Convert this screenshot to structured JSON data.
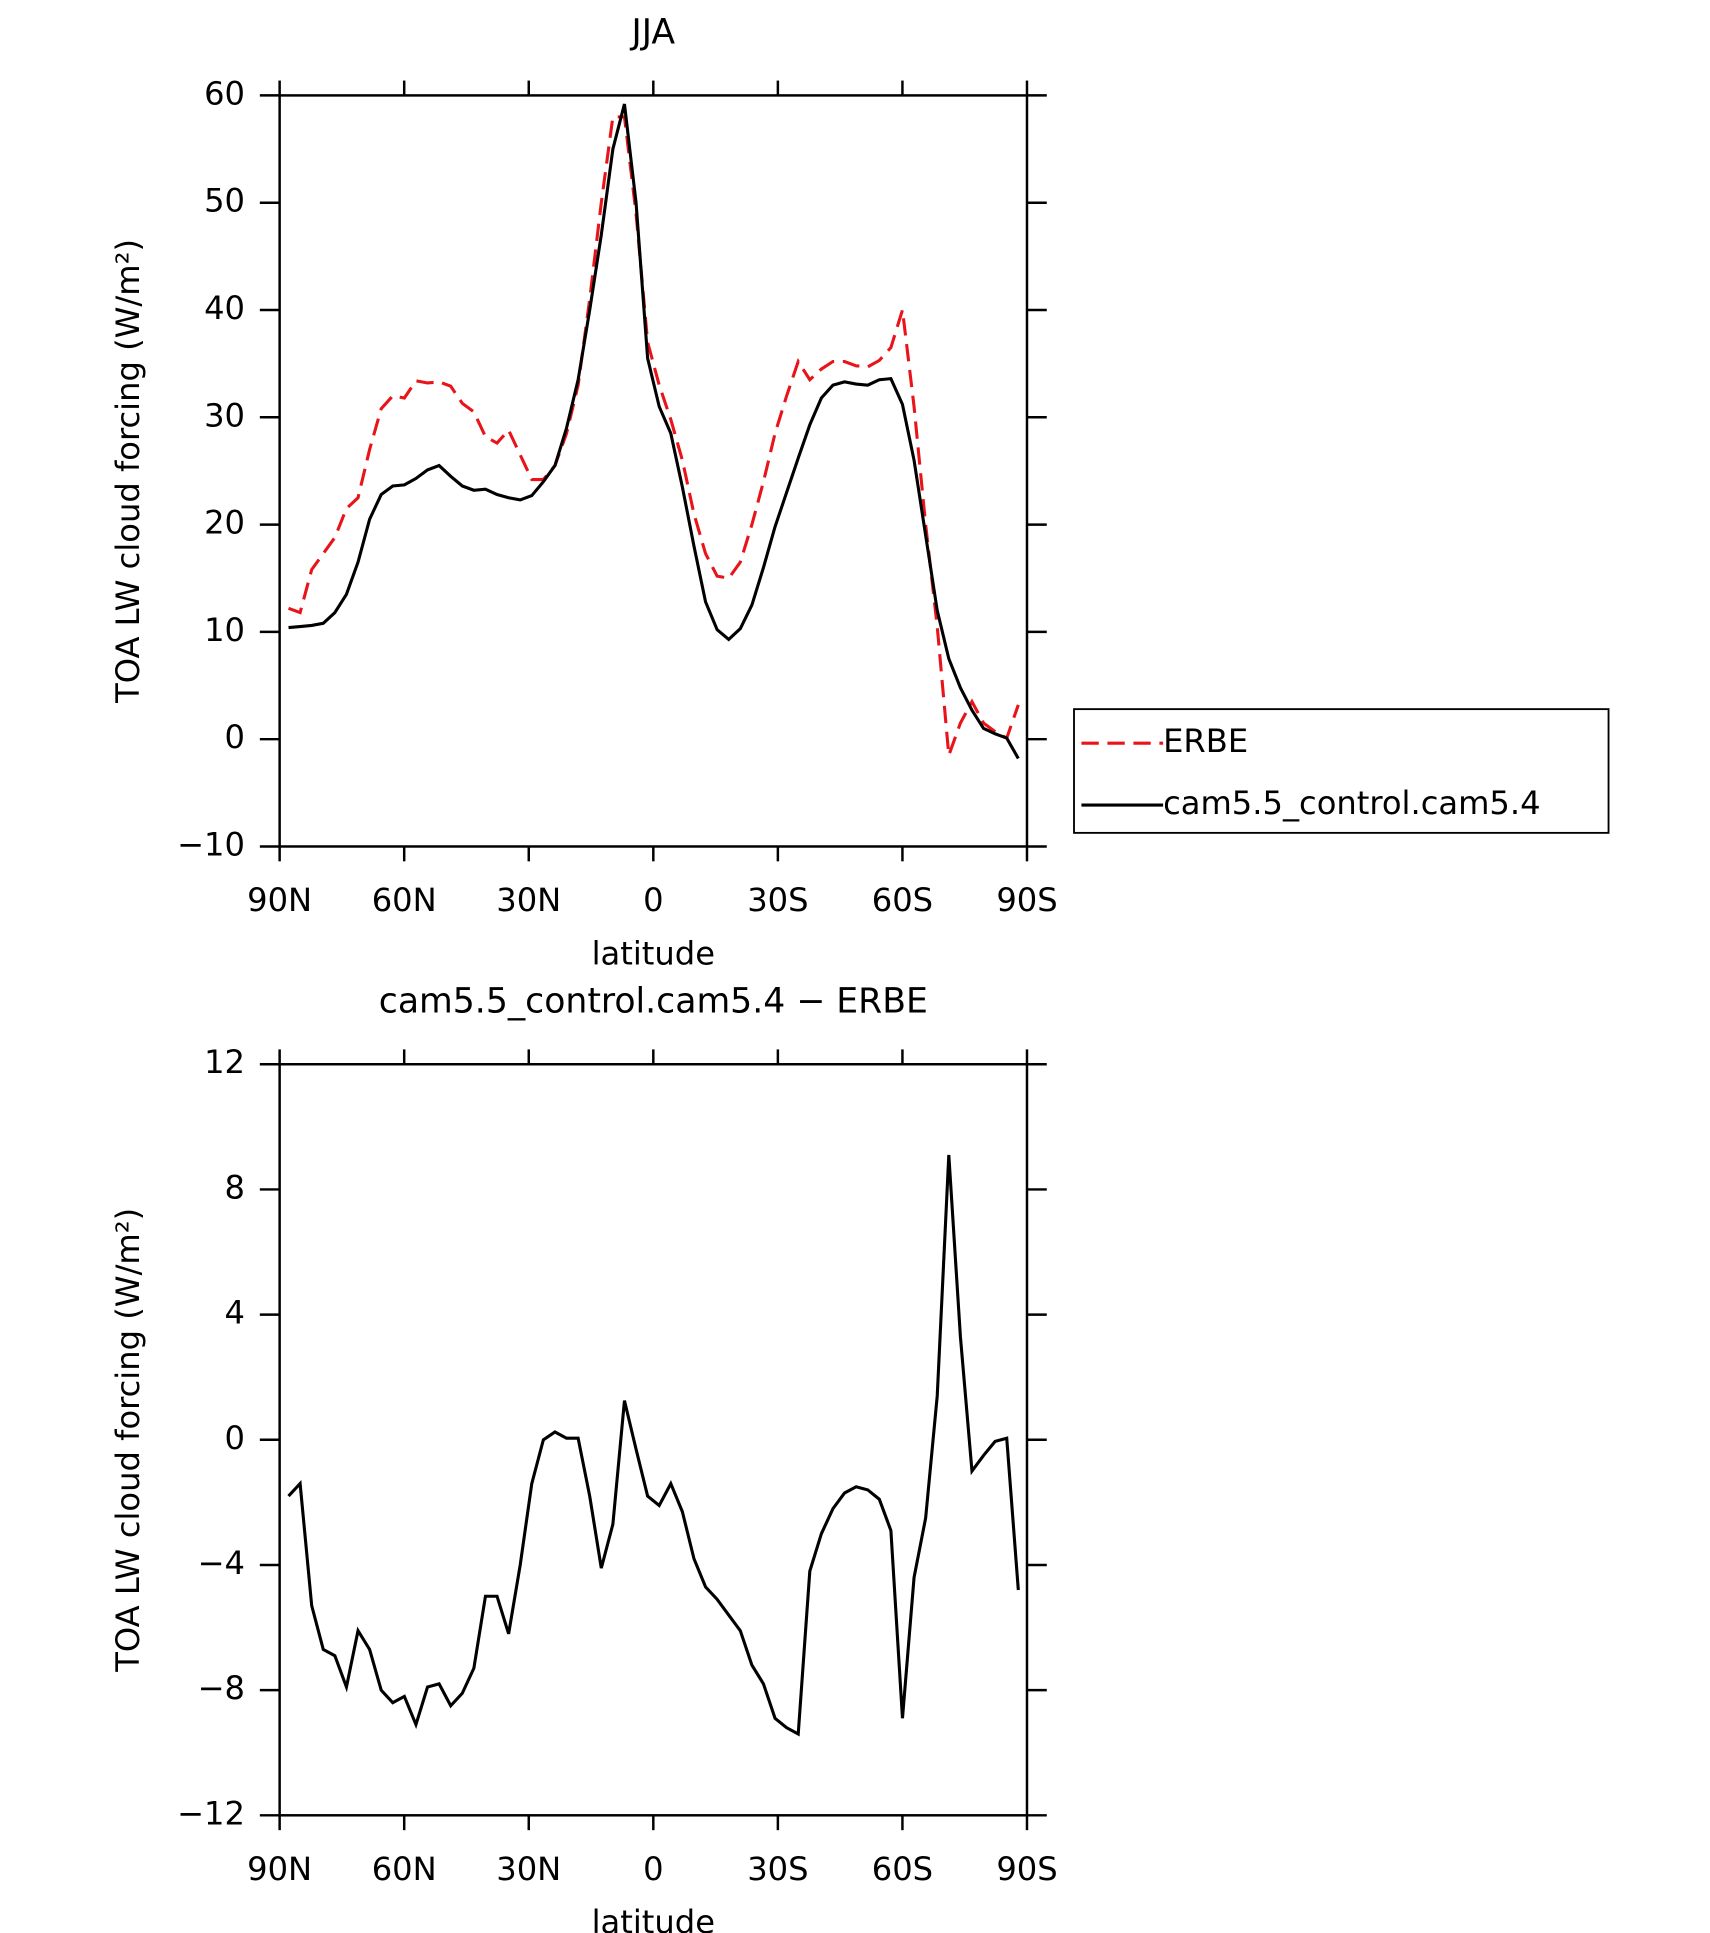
{
  "chart_data": [
    {
      "type": "line",
      "title": "JJA",
      "xlabel": "latitude",
      "ylabel": "TOA LW cloud forcing (W/m²)",
      "x": [
        87.86,
        85.07,
        82.28,
        79.49,
        76.7,
        73.91,
        71.12,
        68.33,
        65.54,
        62.75,
        59.96,
        57.17,
        54.38,
        51.59,
        48.8,
        46.01,
        43.22,
        40.43,
        37.64,
        34.85,
        32.06,
        29.27,
        26.48,
        23.69,
        20.9,
        18.11,
        15.32,
        12.53,
        9.74,
        6.95,
        4.16,
        1.37,
        -1.42,
        -4.21,
        -7.0,
        -9.79,
        -12.58,
        -15.37,
        -18.16,
        -20.95,
        -23.74,
        -26.53,
        -29.32,
        -32.11,
        -34.9,
        -37.69,
        -40.48,
        -43.27,
        -46.06,
        -48.85,
        -51.64,
        -54.43,
        -57.22,
        -60.01,
        -62.8,
        -65.59,
        -68.38,
        -71.17,
        -73.96,
        -76.75,
        -79.54,
        -82.33,
        -85.12,
        -87.91
      ],
      "series": [
        {
          "name": "ERBE",
          "color": "#e8141a",
          "dashed": true,
          "values": [
            12.2,
            11.8,
            15.8,
            17.3,
            18.8,
            21.5,
            22.5,
            27,
            30.8,
            32,
            31.8,
            33.4,
            33.2,
            33.3,
            32.9,
            31.3,
            30.5,
            28.2,
            27.6,
            28.8,
            26.5,
            24.2,
            24.2,
            25.5,
            28.5,
            33,
            41,
            50,
            58,
            58,
            49,
            37,
            33,
            29.8,
            26,
            21,
            17.3,
            15.2,
            15,
            16.5,
            20,
            24,
            28.5,
            32,
            35.2,
            33.5,
            34.5,
            35.2,
            35.2,
            34.8,
            34.7,
            35.3,
            36.5,
            40,
            31,
            20,
            10.5,
            -1.5,
            1.5,
            3.5,
            1.5,
            0.7,
            0.1,
            3.2
          ]
        },
        {
          "name": "cam5.5_control.cam5.4",
          "color": "#000000",
          "dashed": false,
          "values": [
            10.4,
            10.5,
            10.6,
            10.8,
            11.8,
            13.5,
            16.5,
            20.5,
            22.8,
            23.6,
            23.7,
            24.3,
            25.1,
            25.5,
            24.5,
            23.6,
            23.2,
            23.3,
            22.8,
            22.5,
            22.3,
            22.7,
            24,
            25.5,
            29,
            33.5,
            40,
            47,
            55,
            59.2,
            50,
            35.5,
            31,
            28.5,
            23.5,
            18,
            12.8,
            10.2,
            9.3,
            10.3,
            12.5,
            16,
            19.8,
            23,
            26.2,
            29.3,
            31.8,
            33,
            33.3,
            33.1,
            33,
            33.5,
            33.6,
            31.2,
            26,
            19,
            12,
            7.5,
            4.8,
            2.7,
            1,
            0.5,
            0.1,
            -1.8
          ]
        }
      ],
      "xlim": [
        90,
        -90
      ],
      "xticks": [
        {
          "value": 90,
          "label": "90N"
        },
        {
          "value": 60,
          "label": "60N"
        },
        {
          "value": 30,
          "label": "30N"
        },
        0,
        {
          "value": -30,
          "label": "30S"
        },
        {
          "value": -60,
          "label": "60S"
        },
        {
          "value": -90,
          "label": "90S"
        }
      ],
      "ylim": [
        -10,
        60
      ],
      "yticks": [
        {
          "value": -10,
          "label": "−10"
        },
        0,
        10,
        20,
        30,
        40,
        50,
        60
      ],
      "legend": "right"
    },
    {
      "type": "line",
      "title": "cam5.5_control.cam5.4 − ERBE",
      "xlabel": "latitude",
      "ylabel": "TOA LW cloud forcing (W/m²)",
      "x": [
        87.86,
        85.07,
        82.28,
        79.49,
        76.7,
        73.91,
        71.12,
        68.33,
        65.54,
        62.75,
        59.96,
        57.17,
        54.38,
        51.59,
        48.8,
        46.01,
        43.22,
        40.43,
        37.64,
        34.85,
        32.06,
        29.27,
        26.48,
        23.69,
        20.9,
        18.11,
        15.32,
        12.53,
        9.74,
        6.95,
        4.16,
        1.37,
        -1.42,
        -4.21,
        -7.0,
        -9.79,
        -12.58,
        -15.37,
        -18.16,
        -20.95,
        -23.74,
        -26.53,
        -29.32,
        -32.11,
        -34.9,
        -37.69,
        -40.48,
        -43.27,
        -46.06,
        -48.85,
        -51.64,
        -54.43,
        -57.22,
        -60.01,
        -62.8,
        -65.59,
        -68.38,
        -71.17,
        -73.96,
        -76.75,
        -79.54,
        -82.33,
        -85.12,
        -87.91
      ],
      "color": "#000000",
      "values": [
        -1.8,
        -1.4,
        -5.3,
        -6.7,
        -6.9,
        -7.9,
        -6.1,
        -6.7,
        -8,
        -8.4,
        -8.2,
        -9.1,
        -7.9,
        -7.8,
        -8.5,
        -8.1,
        -7.3,
        -5,
        -5,
        -6.2,
        -4,
        -1.4,
        0,
        0.25,
        0.05,
        0.05,
        -1.8,
        -4.1,
        -2.7,
        1.25,
        -0.3,
        -1.8,
        -2.1,
        -1.4,
        -2.3,
        -3.8,
        -4.7,
        -5.1,
        -5.6,
        -6.1,
        -7.2,
        -7.8,
        -8.9,
        -9.2,
        -9.4,
        -4.2,
        -3,
        -2.2,
        -1.7,
        -1.5,
        -1.6,
        -1.9,
        -2.9,
        -8.9,
        -4.4,
        -2.5,
        1.4,
        9.1,
        3.3,
        -1,
        -0.5,
        -0.05,
        0.05,
        -4.8
      ],
      "xlim": [
        90,
        -90
      ],
      "xticks": [
        {
          "value": 90,
          "label": "90N"
        },
        {
          "value": 60,
          "label": "60N"
        },
        {
          "value": 30,
          "label": "30N"
        },
        0,
        {
          "value": -30,
          "label": "30S"
        },
        {
          "value": -60,
          "label": "60S"
        },
        {
          "value": -90,
          "label": "90S"
        }
      ],
      "ylim": [
        -12,
        12
      ],
      "yticks": [
        {
          "value": -12,
          "label": "−12"
        },
        {
          "value": -8,
          "label": "−8"
        },
        {
          "value": -4,
          "label": "−4"
        },
        0,
        4,
        8,
        12
      ]
    }
  ]
}
